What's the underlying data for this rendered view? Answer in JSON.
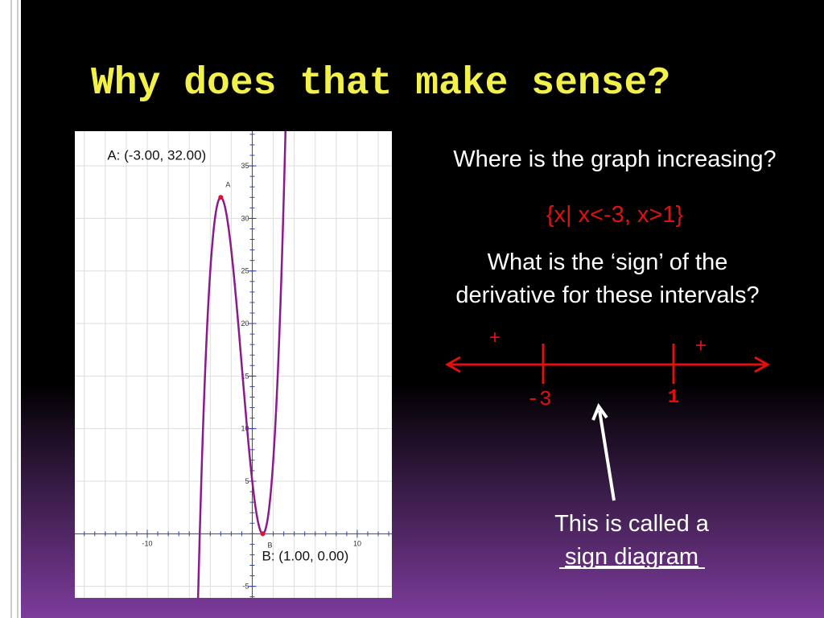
{
  "title": "Why does that make sense?",
  "graph": {
    "xlim": [
      -16.9,
      13.3
    ],
    "ylim": [
      -6.1,
      38.3
    ],
    "xticks": [
      -10,
      10
    ],
    "yticks": [
      -5,
      5,
      10,
      15,
      20,
      25,
      30,
      35
    ],
    "point_a": {
      "label": "A",
      "caption": "A: (-3.00, 32.00)",
      "x": -3,
      "y": 32
    },
    "point_b": {
      "label": "B",
      "caption": "B: (1.00, 0.00)",
      "x": 1,
      "y": 0
    }
  },
  "question1": "Where is the graph increasing?",
  "answer1": "{x| x<-3, x>1}",
  "question2": [
    "What is the ‘sign’ of the",
    "derivative for these intervals?"
  ],
  "sign_diagram": {
    "left_sign": "+",
    "right_sign": "+",
    "critical_points": [
      "-3",
      "1"
    ]
  },
  "note": [
    "This is called a",
    "sign diagram"
  ]
}
